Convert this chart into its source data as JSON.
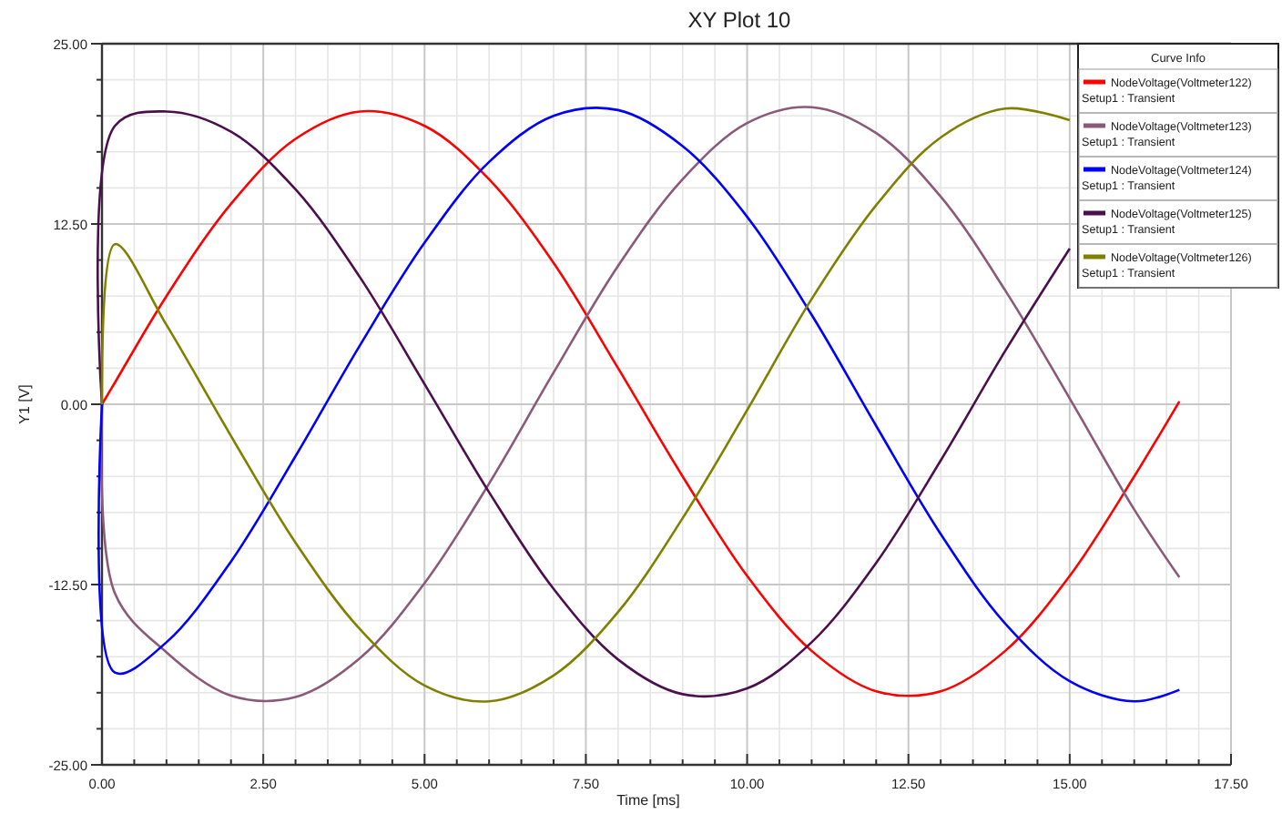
{
  "chart_data": {
    "type": "line",
    "title": "XY Plot 10",
    "xlabel": "Time [ms]",
    "ylabel": "Y1 [V]",
    "legend_title": "Curve Info",
    "x": [
      0,
      0.2,
      1,
      2,
      3,
      4,
      5,
      6,
      7,
      8,
      9,
      10,
      11,
      12,
      13,
      14,
      15,
      16,
      16.7
    ],
    "series": [
      {
        "name": "NodeVoltage(Voltmeter122)\nSetup1 : Transient",
        "color": "#ff0000",
        "values": [
          0,
          1.5,
          7.5,
          13.9,
          18.4,
          20.3,
          19.3,
          15.6,
          9.8,
          2.5,
          -5.0,
          -11.9,
          -17.1,
          -19.9,
          -19.9,
          -17.1,
          -11.9,
          -5.0,
          0.2
        ]
      },
      {
        "name": "NodeVoltage(Voltmeter123)\nSetup1 : Transient",
        "color": "#8a5a78",
        "values": [
          0,
          -13.1,
          -17.2,
          -20.2,
          -20.3,
          -17.6,
          -12.4,
          -5.5,
          2.2,
          9.6,
          15.6,
          19.5,
          20.6,
          18.8,
          14.4,
          7.9,
          0.4,
          -7.3,
          -12.0
        ]
      },
      {
        "name": "NodeVoltage(Voltmeter124)\nSetup1 : Transient",
        "color": "#0000ff",
        "values": [
          0,
          -18.6,
          -16.5,
          -10.9,
          -3.6,
          4.1,
          11.2,
          16.8,
          20.0,
          20.4,
          17.9,
          13.0,
          6.2,
          -1.5,
          -9.0,
          -15.2,
          -19.2,
          -20.6,
          -19.8
        ]
      },
      {
        "name": "NodeVoltage(Voltmeter125)\nSetup1 : Transient",
        "color": "#4b0f4b",
        "values": [
          0,
          19.3,
          20.3,
          18.9,
          14.9,
          8.8,
          1.4,
          -6.1,
          -12.8,
          -17.7,
          -20.1,
          -19.7,
          -16.5,
          -11.0,
          -3.9,
          3.7,
          10.8,
          null,
          null
        ]
      },
      {
        "name": "NodeVoltage(Voltmeter126)\nSetup1 : Transient",
        "color": "#808000",
        "values": [
          0,
          11.1,
          5.5,
          -2.2,
          -9.6,
          -15.6,
          -19.5,
          -20.6,
          -18.8,
          -14.4,
          -7.9,
          -0.4,
          7.3,
          13.8,
          18.5,
          20.5,
          19.7,
          null,
          null
        ]
      }
    ],
    "xlim": [
      0,
      17.5
    ],
    "xticks": [
      {
        "value": 0,
        "label": "0.00"
      },
      {
        "value": 2.5,
        "label": "2.50"
      },
      {
        "value": 5,
        "label": "5.00"
      },
      {
        "value": 7.5,
        "label": "7.50"
      },
      {
        "value": 10,
        "label": "10.00"
      },
      {
        "value": 12.5,
        "label": "12.50"
      },
      {
        "value": 15,
        "label": "15.00"
      },
      {
        "value": 17.5,
        "label": "17.50"
      }
    ],
    "ylim": [
      -25,
      25
    ],
    "yticks": [
      {
        "value": -25,
        "label": "-25.00"
      },
      {
        "value": -12.5,
        "label": "-12.50"
      },
      {
        "value": 0,
        "label": "0.00"
      },
      {
        "value": 12.5,
        "label": "12.50"
      },
      {
        "value": 25,
        "label": "25.00"
      }
    ],
    "grid": true,
    "legend": "top right",
    "marker": "none",
    "line_style": "solid"
  }
}
